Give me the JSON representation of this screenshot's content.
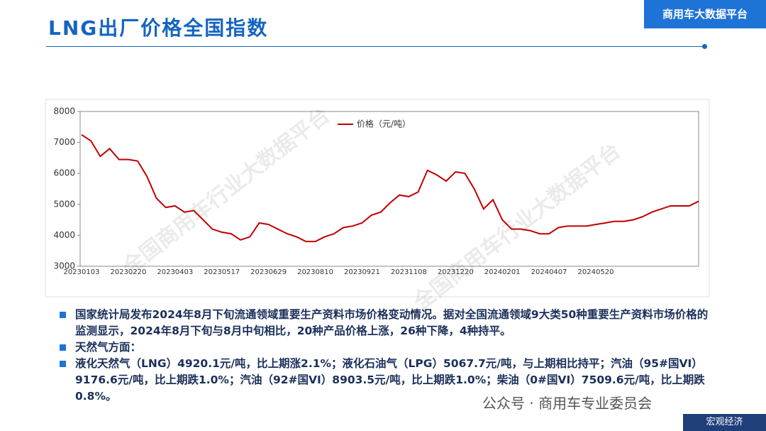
{
  "header": {
    "title": "LNG出厂价格全国指数",
    "brand": "商用车大数据平台"
  },
  "chart_data": {
    "type": "line",
    "watermark": "全国商用车行业大数据平台",
    "categories": [
      "20230103",
      null,
      null,
      null,
      null,
      "20230220",
      null,
      null,
      null,
      null,
      "20230403",
      null,
      null,
      null,
      null,
      "20230517",
      null,
      null,
      null,
      null,
      "20230629",
      null,
      null,
      null,
      null,
      "20230810",
      null,
      null,
      null,
      null,
      "20230921",
      null,
      null,
      null,
      null,
      "20231108",
      null,
      null,
      null,
      null,
      "20231220",
      null,
      null,
      null,
      null,
      "20240201",
      null,
      null,
      null,
      null,
      "20240407",
      null,
      null,
      null,
      null,
      "20240520",
      null,
      null,
      null,
      null,
      null,
      null,
      null,
      null,
      null,
      null,
      null
    ],
    "series": [
      {
        "name": "价格（元/吨）",
        "color": "#c00000",
        "values": [
          7250,
          7050,
          6550,
          6800,
          6450,
          6450,
          6400,
          5900,
          5200,
          4900,
          4950,
          4750,
          4800,
          4500,
          4200,
          4100,
          4050,
          3850,
          3950,
          4400,
          4350,
          4200,
          4050,
          3950,
          3800,
          3800,
          3950,
          4050,
          4250,
          4300,
          4400,
          4650,
          4750,
          5050,
          5300,
          5250,
          5400,
          6100,
          5950,
          5750,
          6050,
          6000,
          5500,
          4850,
          5150,
          4500,
          4200,
          4200,
          4150,
          4050,
          4050,
          4250,
          4300,
          4300,
          4300,
          4350,
          4400,
          4450,
          4450,
          4500,
          4600,
          4750,
          4850,
          4950,
          4950,
          4950,
          5100
        ]
      }
    ],
    "ylim": [
      3000,
      8000
    ],
    "yticks": [
      3000,
      4000,
      5000,
      6000,
      7000,
      8000
    ],
    "grid": false,
    "legend": "top"
  },
  "bullets": [
    "国家统计局发布2024年8月下旬流通领域重要生产资料市场价格变动情况。据对全国流通领域9大类50种重要生产资料市场价格的监测显示，2024年8月下旬与8月中旬相比，20种产品价格上涨，26种下降，4种持平。",
    "天然气方面：",
    "液化天然气（LNG）4920.1元/吨，比上期涨2.1%；液化石油气（LPG）5067.7元/吨，与上期相比持平；汽油（95#国VI）9176.6元/吨，比上期跌1.0%；汽油（92#国VI）8903.5元/吨，比上期跌1.0%；柴油（0#国VI）7509.6元/吨，比上期跌0.8%。"
  ],
  "footer": {
    "account": "公众号 · 商用车专业委员会",
    "section": "宏观经济"
  }
}
